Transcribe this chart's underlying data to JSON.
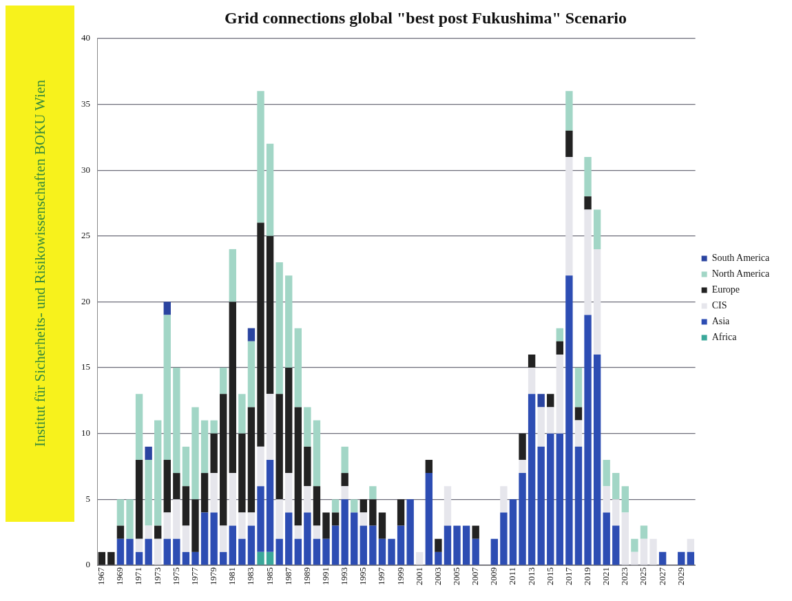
{
  "chart_data": {
    "type": "bar",
    "title": "Grid connections global \"best post Fukushima\" Scenario",
    "annotations": [
      "Institut für Sicherheits- und Risikowissenschaften BOKU Wien"
    ],
    "categories": [
      "1967",
      null,
      "1969",
      null,
      "1971",
      null,
      "1973",
      null,
      "1975",
      null,
      "1977",
      null,
      "1979",
      null,
      "1981",
      null,
      "1983",
      null,
      "1985",
      null,
      "1987",
      null,
      "1989",
      null,
      "1991",
      null,
      "1993",
      null,
      "1995",
      null,
      "1997",
      null,
      "1999",
      null,
      "2001",
      null,
      "2003",
      null,
      "2005",
      null,
      "2007",
      null,
      "2009",
      null,
      "2011",
      null,
      "2013",
      null,
      "2015",
      null,
      "2017",
      null,
      "2019",
      null,
      "2021",
      null,
      "2023",
      null,
      "2025",
      null,
      "2027",
      null,
      "2029",
      null
    ],
    "stacked": true,
    "ylim": [
      0,
      40
    ],
    "yticks": [
      0,
      5,
      10,
      15,
      20,
      25,
      30,
      35,
      40
    ],
    "grid": "y",
    "legend": "right",
    "series": [
      {
        "name": "Africa",
        "color": "#3aa89a",
        "values": [
          0,
          0,
          0,
          0,
          0,
          0,
          0,
          0,
          0,
          0,
          0,
          0,
          0,
          0,
          0,
          0,
          0,
          1,
          1,
          0,
          0,
          0,
          0,
          0,
          0,
          0,
          0,
          0,
          0,
          0,
          0,
          0,
          0,
          0,
          0,
          0,
          0,
          0,
          0,
          0,
          0,
          0,
          0,
          0,
          0,
          0,
          0,
          0,
          0,
          0,
          0,
          0,
          0,
          0,
          0,
          0,
          0,
          0,
          0,
          0,
          0,
          0,
          0,
          0
        ]
      },
      {
        "name": "Asia",
        "color": "#2d4db3",
        "values": [
          0,
          0,
          2,
          2,
          1,
          2,
          0,
          2,
          2,
          1,
          1,
          4,
          4,
          1,
          3,
          2,
          3,
          5,
          7,
          2,
          4,
          2,
          4,
          2,
          2,
          3,
          5,
          4,
          3,
          3,
          2,
          2,
          3,
          5,
          0,
          7,
          1,
          3,
          3,
          3,
          2,
          0,
          2,
          4,
          5,
          7,
          13,
          9,
          10,
          10,
          22,
          9,
          19,
          16,
          4,
          3,
          0,
          0,
          0,
          0,
          1,
          0,
          1,
          1
        ]
      },
      {
        "name": "CIS",
        "color": "#e6e6ec",
        "values": [
          0,
          0,
          0,
          0,
          1,
          1,
          2,
          2,
          3,
          2,
          0,
          0,
          3,
          2,
          4,
          2,
          1,
          3,
          5,
          3,
          3,
          1,
          2,
          1,
          0,
          0,
          1,
          0,
          1,
          0,
          0,
          0,
          0,
          0,
          1,
          0,
          0,
          3,
          0,
          0,
          0,
          0,
          0,
          2,
          0,
          1,
          2,
          3,
          2,
          6,
          9,
          2,
          8,
          8,
          2,
          2,
          4,
          1,
          2,
          2,
          0,
          0,
          0,
          1
        ]
      },
      {
        "name": "Europe",
        "color": "#222222",
        "values": [
          1,
          1,
          1,
          0,
          6,
          0,
          1,
          4,
          2,
          3,
          4,
          3,
          3,
          10,
          13,
          6,
          8,
          17,
          12,
          8,
          8,
          9,
          3,
          3,
          2,
          1,
          1,
          0,
          1,
          2,
          2,
          0,
          2,
          0,
          0,
          1,
          1,
          0,
          0,
          0,
          1,
          0,
          0,
          0,
          0,
          2,
          1,
          0,
          1,
          1,
          2,
          1,
          1,
          0,
          0,
          0,
          0,
          0,
          0,
          0,
          0,
          0,
          0,
          0
        ]
      },
      {
        "name": "North America",
        "color": "#a2d6c6",
        "values": [
          0,
          0,
          2,
          3,
          5,
          5,
          8,
          11,
          8,
          3,
          7,
          4,
          1,
          2,
          4,
          3,
          5,
          10,
          7,
          10,
          7,
          6,
          3,
          5,
          0,
          1,
          2,
          1,
          0,
          1,
          0,
          0,
          0,
          0,
          0,
          0,
          0,
          0,
          0,
          0,
          0,
          0,
          0,
          0,
          0,
          0,
          0,
          0,
          0,
          1,
          3,
          3,
          3,
          3,
          2,
          2,
          2,
          1,
          1,
          0,
          0,
          0,
          0,
          0
        ]
      },
      {
        "name": "South America",
        "color": "#2a44a0",
        "values": [
          0,
          0,
          0,
          0,
          0,
          1,
          0,
          1,
          0,
          0,
          0,
          0,
          0,
          0,
          0,
          0,
          1,
          0,
          0,
          0,
          0,
          0,
          0,
          0,
          0,
          0,
          0,
          0,
          0,
          0,
          0,
          0,
          0,
          0,
          0,
          0,
          0,
          0,
          0,
          0,
          0,
          0,
          0,
          0,
          0,
          0,
          0,
          1,
          0,
          0,
          0,
          0,
          0,
          0,
          0,
          0,
          0,
          0,
          0,
          0,
          0,
          0,
          0,
          0
        ]
      }
    ]
  }
}
